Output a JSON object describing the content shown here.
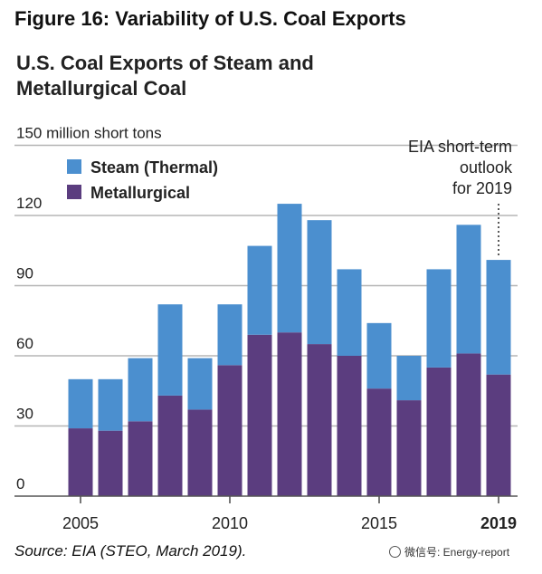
{
  "figure_title": "Figure 16: Variability of U.S. Coal Exports",
  "source": "Source: EIA (STEO, March 2019).",
  "watermark": "微信号: Energy-report",
  "colors": {
    "steam": "#4b8fcf",
    "metallurgical": "#5b3d7f",
    "grid": "#b5b5b5",
    "axis": "#555555"
  },
  "chart_data": {
    "type": "bar",
    "stacked": true,
    "title": "U.S. Coal Exports of Steam and Metallurgical Coal",
    "ylabel": "150 million short tons",
    "ylim": [
      0,
      150
    ],
    "yticks": [
      "0",
      "30",
      "60",
      "90",
      "120"
    ],
    "xticks": [
      {
        "year": 2005,
        "label": "2005",
        "bold": false
      },
      {
        "year": 2010,
        "label": "2010",
        "bold": false
      },
      {
        "year": 2015,
        "label": "2015",
        "bold": false
      },
      {
        "year": 2019,
        "label": "2019",
        "bold": true
      }
    ],
    "categories": [
      2005,
      2006,
      2007,
      2008,
      2009,
      2010,
      2011,
      2012,
      2013,
      2014,
      2015,
      2016,
      2017,
      2018,
      2019
    ],
    "series": [
      {
        "name": "Metallurgical",
        "values": [
          29,
          28,
          32,
          43,
          37,
          56,
          69,
          70,
          65,
          60,
          46,
          41,
          55,
          61,
          52
        ]
      },
      {
        "name": "Steam (Thermal)",
        "values": [
          21,
          22,
          27,
          39,
          22,
          26,
          38,
          55,
          53,
          37,
          28,
          19,
          42,
          55,
          49
        ]
      }
    ],
    "legend_order": [
      "Steam (Thermal)",
      "Metallurgical"
    ],
    "legend_position": "top-left",
    "annotation": {
      "text": [
        "EIA short-term",
        "outlook",
        "for 2019"
      ],
      "year": 2019
    }
  }
}
